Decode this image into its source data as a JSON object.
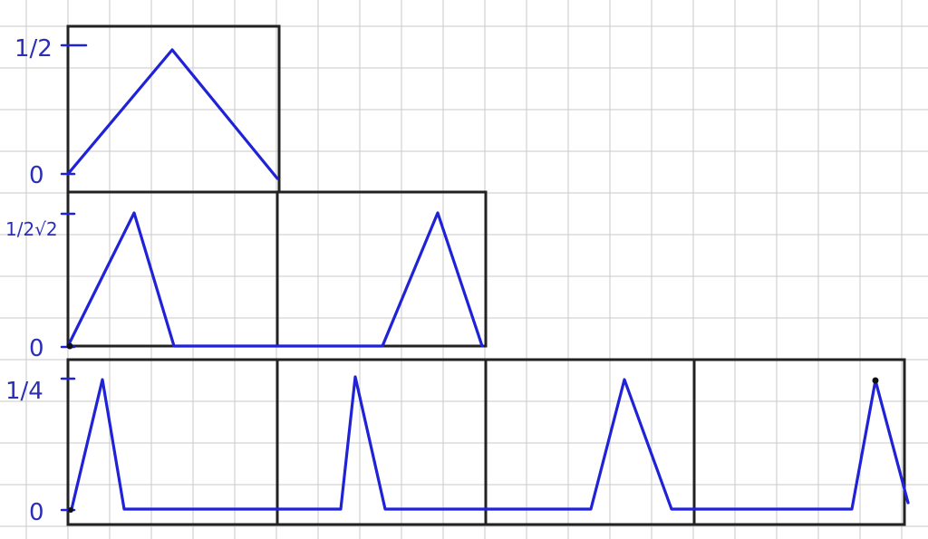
{
  "labels": {
    "row1_top": "1/2",
    "row1_bottom": "0",
    "row2_top": "1/2√2",
    "row2_bottom": "0",
    "row3_top": "1/4",
    "row3_bottom": "0"
  },
  "colors": {
    "ink": "#1f22d6",
    "box": "#222222",
    "grid": "#c9c9c9",
    "paper": "#ffffff"
  },
  "description": "Hand-drawn triangular pulse waveforms on grid paper at three scales"
}
